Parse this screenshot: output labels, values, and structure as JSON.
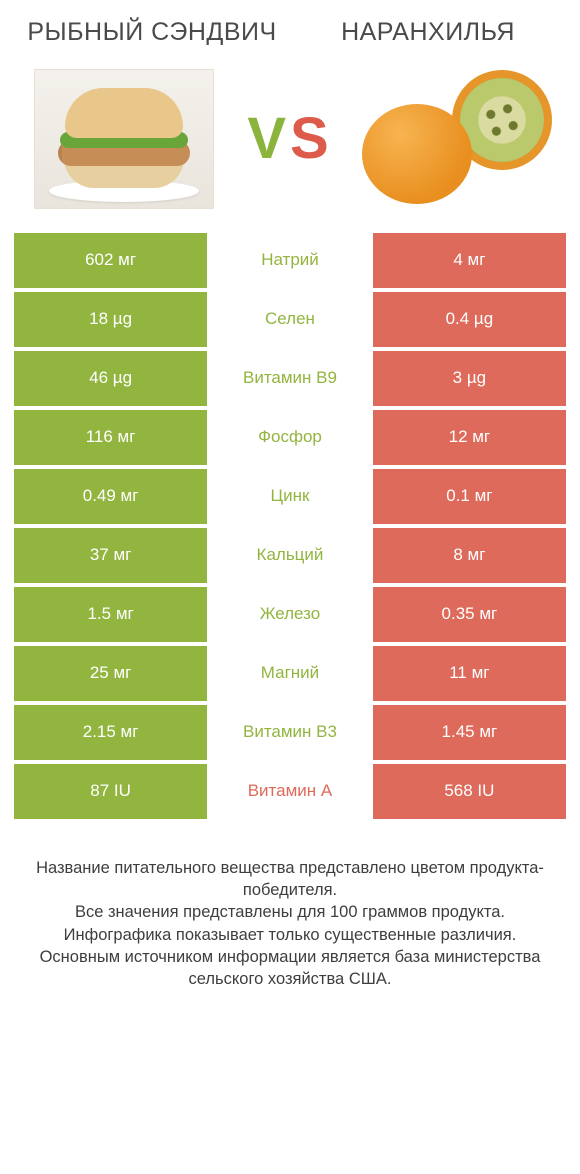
{
  "colors": {
    "green": "#92b53f",
    "red": "#dd6a5b",
    "text": "#4a4a4a"
  },
  "header": {
    "left_title": "РЫБНЫЙ СЭНДВИЧ",
    "right_title": "НАРАНХИЛЬЯ",
    "vs_v": "V",
    "vs_s": "S"
  },
  "comparison": {
    "rows": [
      {
        "nutrient": "Натрий",
        "left": "602 мг",
        "right": "4 мг",
        "winner": "left"
      },
      {
        "nutrient": "Селен",
        "left": "18 µg",
        "right": "0.4 µg",
        "winner": "left"
      },
      {
        "nutrient": "Витамин B9",
        "left": "46 µg",
        "right": "3 µg",
        "winner": "left"
      },
      {
        "nutrient": "Фосфор",
        "left": "116 мг",
        "right": "12 мг",
        "winner": "left"
      },
      {
        "nutrient": "Цинк",
        "left": "0.49 мг",
        "right": "0.1 мг",
        "winner": "left"
      },
      {
        "nutrient": "Кальций",
        "left": "37 мг",
        "right": "8 мг",
        "winner": "left"
      },
      {
        "nutrient": "Железо",
        "left": "1.5 мг",
        "right": "0.35 мг",
        "winner": "left"
      },
      {
        "nutrient": "Магний",
        "left": "25 мг",
        "right": "11 мг",
        "winner": "left"
      },
      {
        "nutrient": "Витамин B3",
        "left": "2.15 мг",
        "right": "1.45 мг",
        "winner": "left"
      },
      {
        "nutrient": "Витамин A",
        "left": "87 IU",
        "right": "568 IU",
        "winner": "right"
      }
    ]
  },
  "footer": {
    "line1": "Название питательного вещества представлено цветом продукта-победителя.",
    "line2": "Все значения представлены для 100 граммов продукта.",
    "line3": "Инфографика показывает только существенные различия.",
    "line4": "Основным источником информации является база министерства сельского хозяйства США."
  }
}
